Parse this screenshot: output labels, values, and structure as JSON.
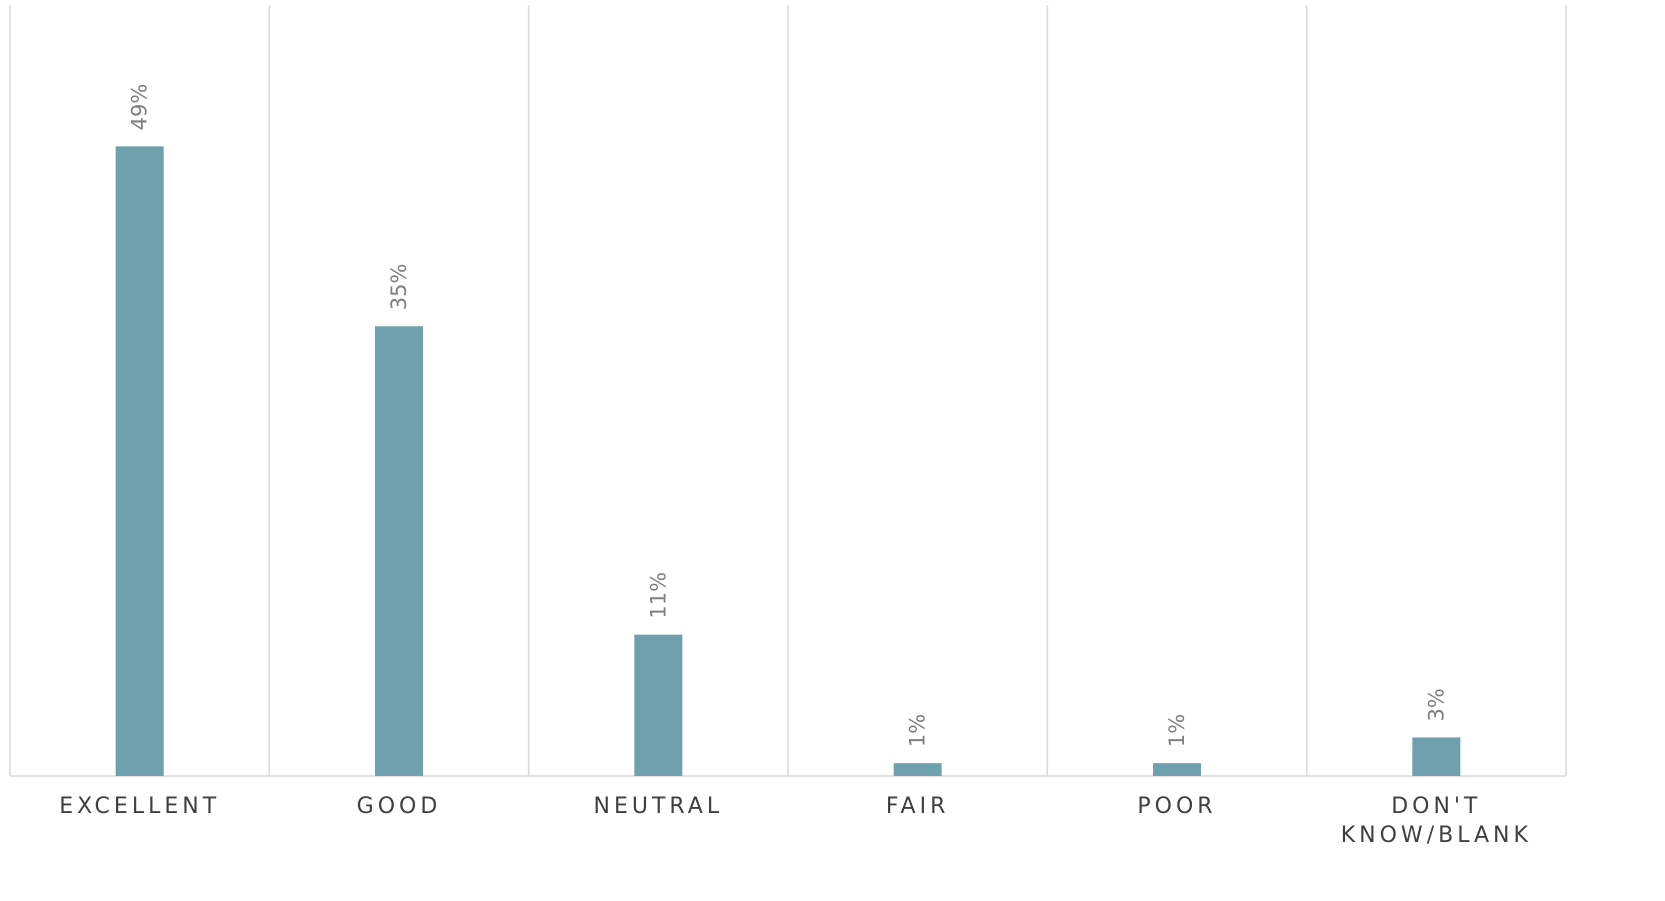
{
  "chart_data": {
    "type": "bar",
    "categories": [
      "EXCELLENT",
      "GOOD",
      "NEUTRAL",
      "FAIR",
      "POOR",
      "DON'T KNOW/BLANK"
    ],
    "values": [
      49,
      35,
      11,
      1,
      1,
      3
    ],
    "value_labels": [
      "49%",
      "35%",
      "11%",
      "1%",
      "1%",
      "3%"
    ],
    "ylim": [
      0,
      60
    ],
    "grid": "vertical category separators",
    "bar_color": "#6fa0ae",
    "grid_color": "#d9d9d9",
    "label_color": "#404040",
    "value_label_color": "#7f7f7f"
  }
}
